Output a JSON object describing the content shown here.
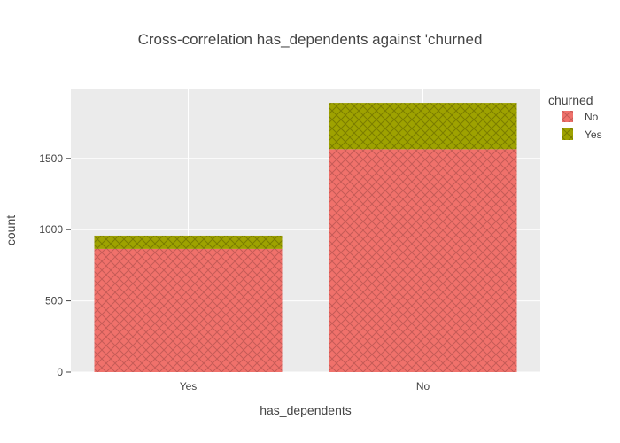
{
  "chart_data": {
    "type": "bar",
    "stacked": true,
    "title": "Cross-correlation has_dependents against 'churned",
    "xlabel": "has_dependents",
    "ylabel": "count",
    "categories": [
      "Yes",
      "No"
    ],
    "ylim": [
      0,
      1990
    ],
    "yticks": [
      0,
      500,
      1000,
      1500
    ],
    "grid": true,
    "legend": {
      "title": "churned",
      "placement": "top-right"
    },
    "series": [
      {
        "name": "No",
        "values": [
          865,
          1565
        ],
        "color": "#f0716b",
        "pattern": "crosshatch"
      },
      {
        "name": "Yes",
        "values": [
          93,
          325
        ],
        "color": "#9ea200",
        "pattern": "crosshatch"
      }
    ],
    "plot_background": "#ebebeb"
  }
}
